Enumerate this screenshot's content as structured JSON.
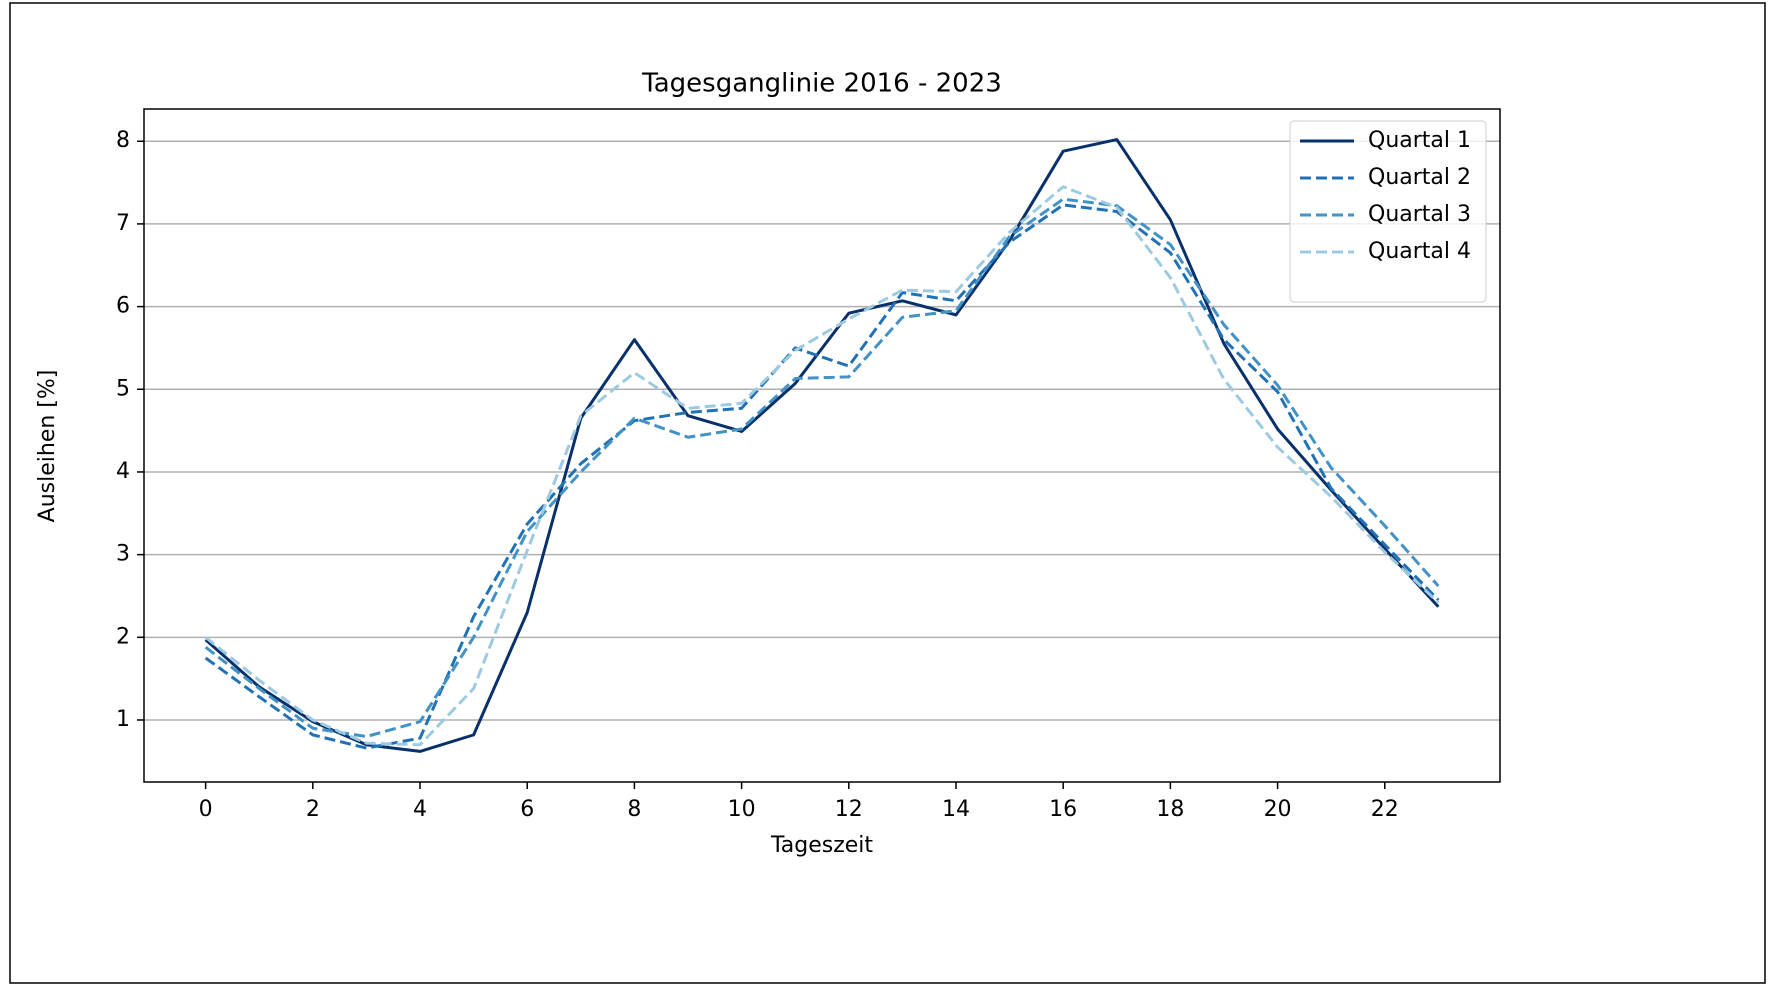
{
  "chart_data": {
    "type": "line",
    "title": "Tagesganglinie 2016 - 2023",
    "xlabel": "Tageszeit",
    "ylabel": "Ausleihen [%]",
    "x": [
      0,
      1,
      2,
      3,
      4,
      5,
      6,
      7,
      8,
      9,
      10,
      11,
      12,
      13,
      14,
      15,
      16,
      17,
      18,
      19,
      20,
      21,
      22,
      23
    ],
    "series": [
      {
        "name": "Quartal 1",
        "color": "#08306b",
        "linestyle": "solid",
        "values": [
          1.97,
          1.4,
          0.98,
          0.7,
          0.62,
          0.82,
          2.3,
          4.65,
          5.6,
          4.68,
          4.49,
          5.07,
          5.92,
          6.07,
          5.9,
          6.8,
          7.88,
          8.02,
          7.05,
          5.55,
          4.52,
          3.78,
          3.07,
          2.37
        ]
      },
      {
        "name": "Quartal 2",
        "color": "#2171b5",
        "linestyle": "dashed",
        "values": [
          1.75,
          1.28,
          0.82,
          0.66,
          0.78,
          2.25,
          3.37,
          4.1,
          4.62,
          4.72,
          4.77,
          5.5,
          5.28,
          6.17,
          6.07,
          6.78,
          7.23,
          7.15,
          6.65,
          5.6,
          4.97,
          3.8,
          3.12,
          2.45
        ]
      },
      {
        "name": "Quartal 3",
        "color": "#4292c6",
        "linestyle": "dashed",
        "values": [
          1.88,
          1.38,
          0.9,
          0.8,
          0.98,
          2.0,
          3.28,
          4.0,
          4.65,
          4.42,
          4.52,
          5.13,
          5.15,
          5.87,
          5.95,
          6.85,
          7.3,
          7.22,
          6.75,
          5.78,
          5.05,
          4.05,
          3.35,
          2.62
        ]
      },
      {
        "name": "Quartal 4",
        "color": "#9ecae1",
        "linestyle": "dashed",
        "values": [
          2.0,
          1.48,
          1.0,
          0.72,
          0.7,
          1.38,
          3.05,
          4.68,
          5.2,
          4.77,
          4.83,
          5.47,
          5.85,
          6.2,
          6.18,
          6.9,
          7.45,
          7.2,
          6.35,
          5.12,
          4.3,
          3.7,
          3.03,
          2.42
        ]
      }
    ],
    "xlim": [
      -1.15,
      24.15
    ],
    "ylim": [
      0.25,
      8.39
    ],
    "xticks": [
      0,
      2,
      4,
      6,
      8,
      10,
      12,
      14,
      16,
      18,
      20,
      22
    ],
    "yticks": [
      1,
      2,
      3,
      4,
      5,
      6,
      7,
      8
    ],
    "grid": "y",
    "legend": "upper right"
  }
}
